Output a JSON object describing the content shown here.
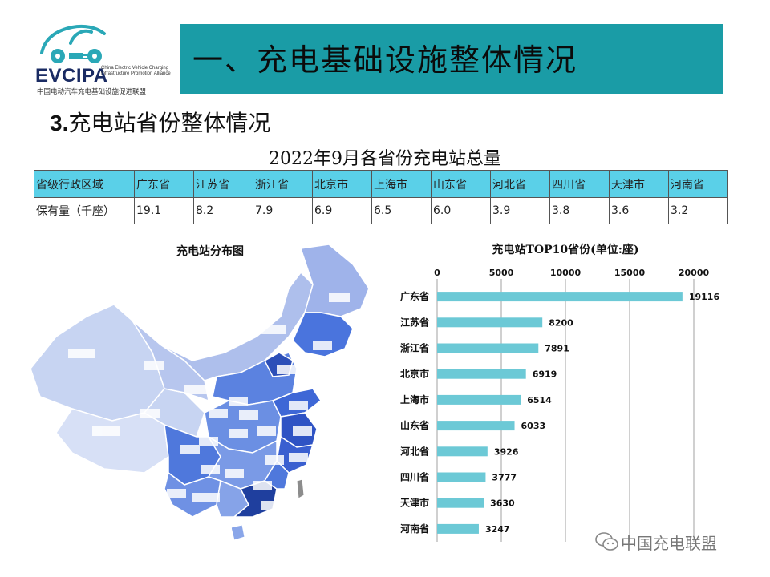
{
  "logo": {
    "brand": "EVCIPA",
    "subtitle_en": "China Electric Vehicle Charging Infrastructure Promotion Alliance",
    "subtitle_cn": "中国电动汽车充电基础设施促进联盟",
    "color": "#1a2b63"
  },
  "header": {
    "title": "一、充电基础设施整体情况",
    "banner_color": "#1a9ca6"
  },
  "section": {
    "number": "3.",
    "title": "充电站省份整体情况"
  },
  "table": {
    "title": "2022年9月各省份充电站总量",
    "header_color": "#5ad0e8",
    "row_labels": [
      "省级行政区域",
      "保有量（千座）"
    ],
    "provinces": [
      "广东省",
      "江苏省",
      "浙江省",
      "北京市",
      "上海市",
      "山东省",
      "河北省",
      "四川省",
      "天津市",
      "河南省"
    ],
    "values": [
      "19.1",
      "8.2",
      "7.9",
      "6.9",
      "6.5",
      "6.0",
      "3.9",
      "3.8",
      "3.6",
      "3.2"
    ]
  },
  "map": {
    "title": "充电站分布图"
  },
  "chart_data": {
    "type": "bar",
    "orientation": "horizontal",
    "title": "充电站TOP10省份(单位:座)",
    "categories": [
      "广东省",
      "江苏省",
      "浙江省",
      "北京市",
      "上海市",
      "山东省",
      "河北省",
      "四川省",
      "天津市",
      "河南省"
    ],
    "values": [
      19116,
      8200,
      7891,
      6919,
      6514,
      6033,
      3926,
      3777,
      3630,
      3247
    ],
    "xlim": [
      0,
      20000
    ],
    "xticks": [
      0,
      5000,
      10000,
      15000,
      20000
    ],
    "axis_position": "top",
    "grid": true,
    "bar_color": "#6cc9d6"
  },
  "watermark": {
    "text": "中国充电联盟",
    "icon": "wechat-icon"
  }
}
